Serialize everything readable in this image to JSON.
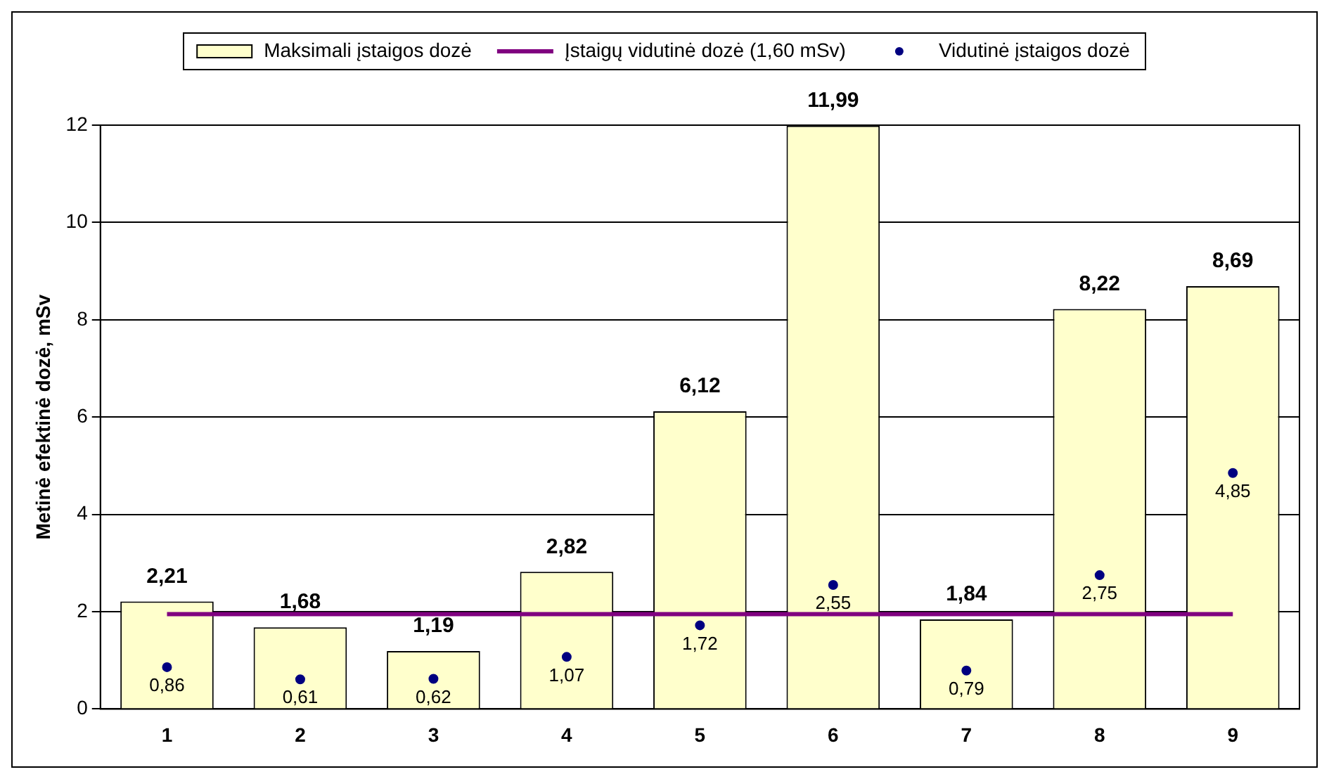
{
  "chart_data": {
    "type": "bar",
    "ylabel": "Metinė efektinė dozė, mSv",
    "categories": [
      "1",
      "2",
      "3",
      "4",
      "5",
      "6",
      "7",
      "8",
      "9"
    ],
    "series": [
      {
        "name": "Maksimali įstaigos dozė",
        "color": "#ffffcc",
        "values": [
          2.21,
          1.68,
          1.19,
          2.82,
          6.12,
          11.99,
          1.84,
          8.22,
          8.69
        ],
        "value_labels": [
          "2,21",
          "1,68",
          "1,19",
          "2,82",
          "6,12",
          "11,99",
          "1,84",
          "8,22",
          "8,69"
        ]
      },
      {
        "name": "Įstaigų vidutinė dozė (1,60 mSv)",
        "type": "line",
        "marker": "none",
        "color": "#800080",
        "values": [
          1.95,
          1.95,
          1.95,
          1.95,
          1.95,
          1.95,
          1.95,
          1.95,
          1.95
        ]
      },
      {
        "name": "Vidutinė įstaigos dozė",
        "type": "scatter",
        "color": "#000080",
        "values": [
          0.86,
          0.61,
          0.62,
          1.07,
          1.72,
          2.55,
          0.79,
          2.75,
          4.85
        ],
        "value_labels": [
          "0,86",
          "0,61",
          "0,62",
          "1,07",
          "1,72",
          "2,55",
          "0,79",
          "2,75",
          "4,85"
        ]
      }
    ],
    "ylim": [
      0,
      12
    ],
    "yticks": [
      0,
      2,
      4,
      6,
      8,
      10,
      12
    ],
    "grid": "y",
    "legend": "top",
    "marker": "circle",
    "line_style": "solid"
  }
}
